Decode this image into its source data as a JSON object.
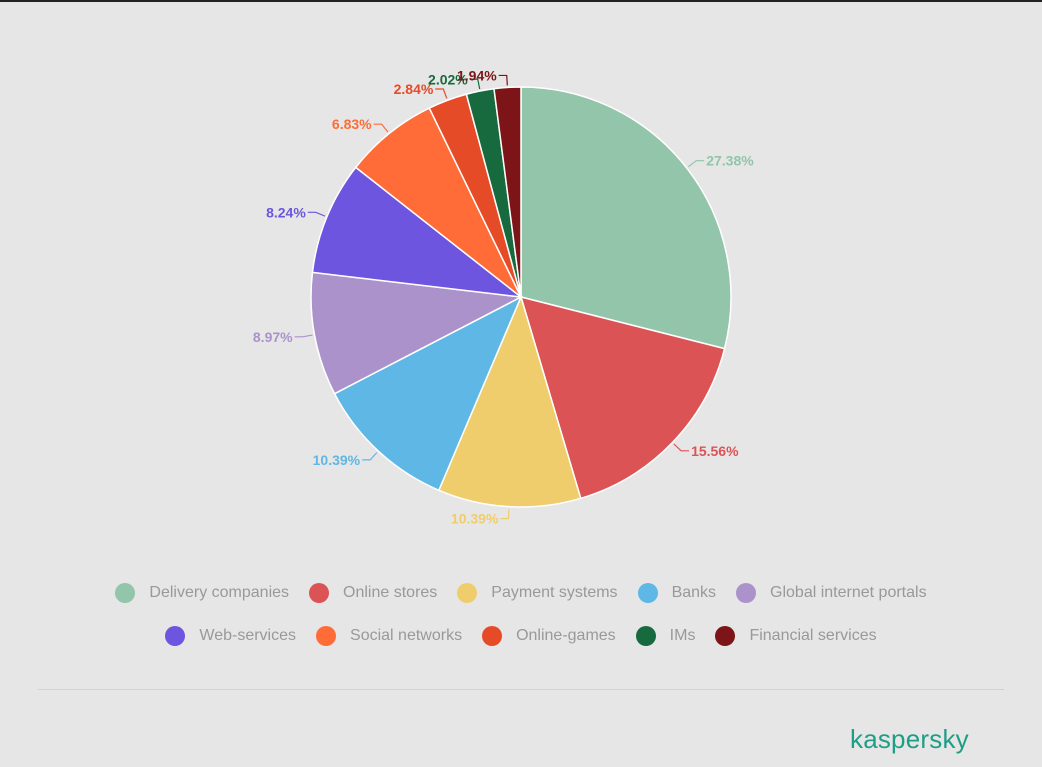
{
  "chart_data": {
    "type": "pie",
    "title": "",
    "slices": [
      {
        "label": "Delivery companies",
        "value": 27.38,
        "value_label": "27.38%",
        "color": "#92c5a9"
      },
      {
        "label": "Online stores",
        "value": 15.56,
        "value_label": "15.56%",
        "color": "#dc5356"
      },
      {
        "label": "Payment systems",
        "value": 10.39,
        "value_label": "10.39%",
        "color": "#f0cd6c"
      },
      {
        "label": "Banks",
        "value": 10.39,
        "value_label": "10.39%",
        "color": "#5fb7e5"
      },
      {
        "label": "Global internet portals",
        "value": 8.97,
        "value_label": "8.97%",
        "color": "#ab92cb"
      },
      {
        "label": "Web-services",
        "value": 8.24,
        "value_label": "8.24%",
        "color": "#6d55df"
      },
      {
        "label": "Social networks",
        "value": 6.83,
        "value_label": "6.83%",
        "color": "#ff6c37"
      },
      {
        "label": "Online-games",
        "value": 2.84,
        "value_label": "2.84%",
        "color": "#e54b26"
      },
      {
        "label": "IMs",
        "value": 2.02,
        "value_label": "2.02%",
        "color": "#176a3e"
      },
      {
        "label": "Financial services",
        "value": 1.94,
        "value_label": "1.94%",
        "color": "#7d1417"
      }
    ],
    "legend": "bottom"
  },
  "brand": {
    "logo_text": "kaspersky",
    "color": "#1f9e87"
  }
}
